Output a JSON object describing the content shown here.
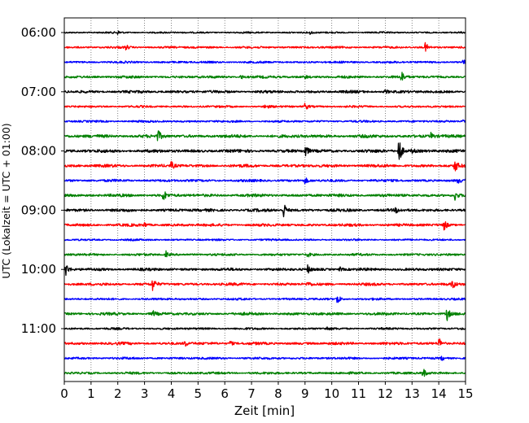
{
  "chart_data": {
    "type": "line",
    "title": "",
    "xlabel": "Zeit  [min]",
    "ylabel": "UTC (Lokalzeit = UTC + 01:00)",
    "xlim": [
      0,
      15
    ],
    "x_ticks": [
      "0",
      "1",
      "2",
      "3",
      "4",
      "5",
      "6",
      "7",
      "8",
      "9",
      "10",
      "11",
      "12",
      "13",
      "14",
      "15"
    ],
    "y_ticks": [
      "06:00",
      "07:00",
      "08:00",
      "09:00",
      "10:00",
      "11:00"
    ],
    "grid": "vertical dotted",
    "legend": "none",
    "trace_interval_min": 15,
    "colors": [
      "#000000",
      "#ff0000",
      "#0000ff",
      "#008000"
    ],
    "traces": [
      {
        "start": "06:00",
        "color": "#000000",
        "noise": 0.8,
        "events": [
          [
            2.0,
            2
          ],
          [
            9.2,
            2.5
          ]
        ]
      },
      {
        "start": "06:15",
        "color": "#ff0000",
        "noise": 1.0,
        "events": [
          [
            2.3,
            3
          ],
          [
            13.5,
            6
          ]
        ]
      },
      {
        "start": "06:30",
        "color": "#0000ff",
        "noise": 1.0,
        "events": [
          [
            14.9,
            3
          ]
        ]
      },
      {
        "start": "06:45",
        "color": "#008000",
        "noise": 1.2,
        "events": [
          [
            6.6,
            3
          ],
          [
            9.0,
            2
          ],
          [
            12.6,
            8
          ]
        ]
      },
      {
        "start": "07:00",
        "color": "#000000",
        "noise": 1.3,
        "events": [
          [
            12.0,
            3
          ]
        ]
      },
      {
        "start": "07:15",
        "color": "#ff0000",
        "noise": 1.0,
        "events": [
          [
            7.5,
            3
          ],
          [
            9.0,
            5
          ]
        ]
      },
      {
        "start": "07:30",
        "color": "#0000ff",
        "noise": 1.0,
        "events": [
          [
            14.9,
            3
          ]
        ]
      },
      {
        "start": "07:45",
        "color": "#008000",
        "noise": 1.5,
        "events": [
          [
            3.5,
            8
          ],
          [
            13.7,
            4
          ]
        ]
      },
      {
        "start": "08:00",
        "color": "#000000",
        "noise": 1.5,
        "events": [
          [
            9.0,
            9
          ],
          [
            12.5,
            22
          ],
          [
            13.0,
            3
          ]
        ]
      },
      {
        "start": "08:15",
        "color": "#ff0000",
        "noise": 1.4,
        "events": [
          [
            4.0,
            5
          ],
          [
            14.6,
            8
          ]
        ]
      },
      {
        "start": "08:30",
        "color": "#0000ff",
        "noise": 1.2,
        "events": [
          [
            9.0,
            4
          ],
          [
            14.7,
            3
          ]
        ]
      },
      {
        "start": "08:45",
        "color": "#008000",
        "noise": 1.4,
        "events": [
          [
            3.7,
            8
          ],
          [
            14.6,
            6
          ]
        ]
      },
      {
        "start": "09:00",
        "color": "#000000",
        "noise": 1.4,
        "events": [
          [
            8.2,
            10
          ],
          [
            12.4,
            3
          ]
        ]
      },
      {
        "start": "09:15",
        "color": "#ff0000",
        "noise": 1.3,
        "events": [
          [
            3.0,
            3
          ],
          [
            14.2,
            8
          ]
        ]
      },
      {
        "start": "09:30",
        "color": "#0000ff",
        "noise": 0.9,
        "events": []
      },
      {
        "start": "09:45",
        "color": "#008000",
        "noise": 1.1,
        "events": [
          [
            3.8,
            4
          ],
          [
            9.1,
            3
          ]
        ]
      },
      {
        "start": "10:00",
        "color": "#000000",
        "noise": 1.3,
        "events": [
          [
            0.05,
            9
          ],
          [
            9.1,
            5
          ],
          [
            10.3,
            3
          ]
        ]
      },
      {
        "start": "10:15",
        "color": "#ff0000",
        "noise": 1.3,
        "events": [
          [
            3.3,
            8
          ],
          [
            9.1,
            4
          ],
          [
            14.5,
            6
          ]
        ]
      },
      {
        "start": "10:30",
        "color": "#0000ff",
        "noise": 1.0,
        "events": [
          [
            10.2,
            8
          ]
        ]
      },
      {
        "start": "10:45",
        "color": "#008000",
        "noise": 1.3,
        "events": [
          [
            3.3,
            4
          ],
          [
            14.3,
            9
          ]
        ]
      },
      {
        "start": "11:00",
        "color": "#000000",
        "noise": 1.0,
        "events": [
          [
            9.8,
            2
          ]
        ]
      },
      {
        "start": "11:15",
        "color": "#ff0000",
        "noise": 1.3,
        "events": [
          [
            4.5,
            4
          ],
          [
            6.2,
            4
          ],
          [
            14.0,
            8
          ]
        ]
      },
      {
        "start": "11:30",
        "color": "#0000ff",
        "noise": 1.1,
        "events": [
          [
            14.1,
            3
          ]
        ]
      },
      {
        "start": "11:45",
        "color": "#008000",
        "noise": 1.1,
        "events": [
          [
            13.4,
            8
          ]
        ]
      }
    ]
  }
}
